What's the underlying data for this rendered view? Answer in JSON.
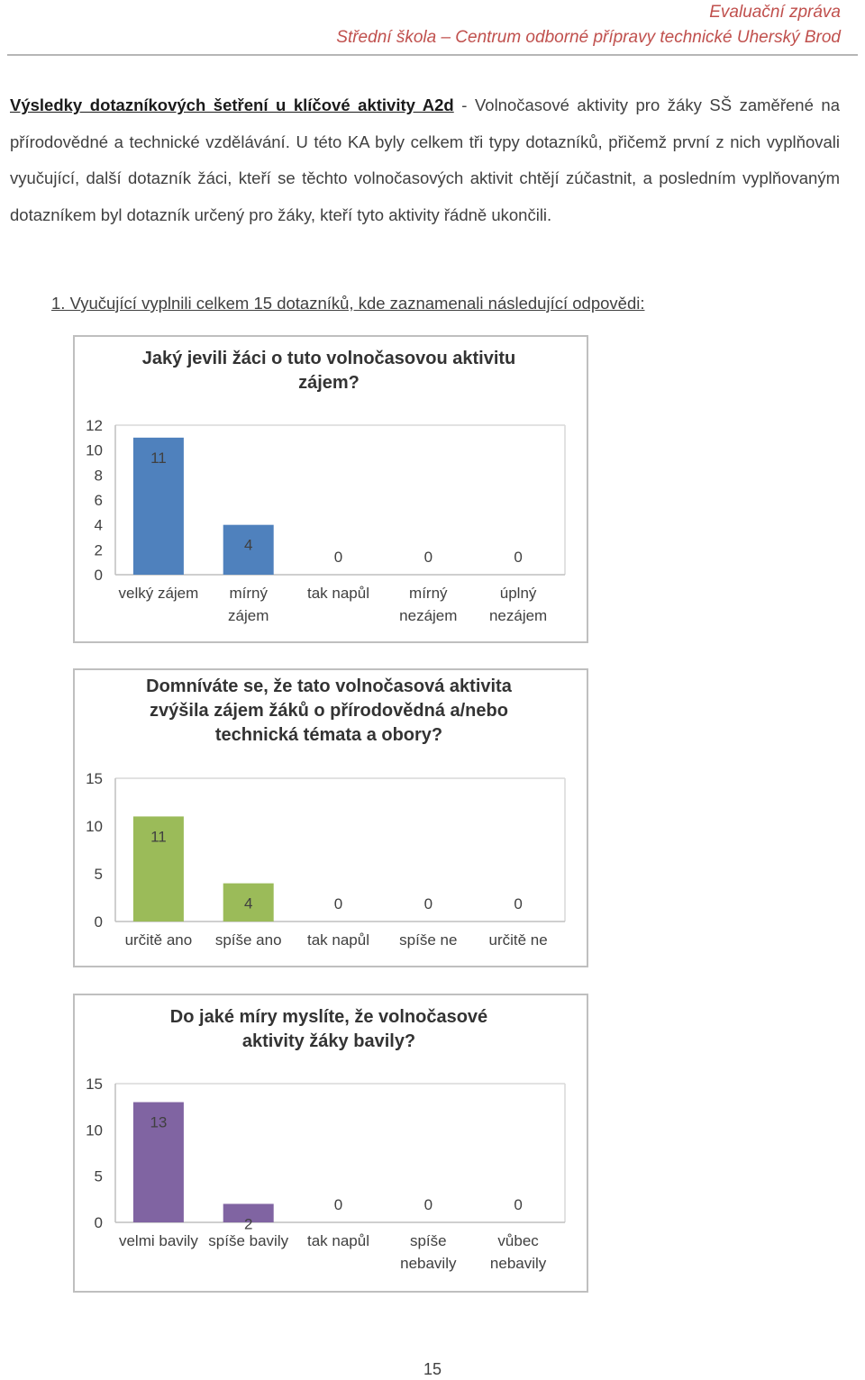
{
  "header": {
    "line1": "Evaluační zpráva",
    "line2": "Střední škola – Centrum odborné přípravy technické Uherský Brod"
  },
  "intro": {
    "lead": "Výsledky dotazníkových šetření u klíčové aktivity A2d",
    "text": " - Volnočasové aktivity pro žáky SŠ zaměřené na přírodovědné a technické vzdělávání. U této KA byly celkem tři typy dotazníků, přičemž první z nich vyplňovali vyučující, další dotazník žáci, kteří se těchto volnočasových aktivit chtějí zúčastnit, a posledním vyplňovaným dotazníkem byl dotazník určený pro žáky, kteří tyto aktivity řádně ukončili."
  },
  "section1": {
    "heading": "1. Vyučující vyplnili celkem 15 dotazníků, kde zaznamenali následující odpovědi:"
  },
  "chart_data": [
    {
      "type": "bar",
      "title": [
        "Jaký jevili žáci o tuto volnočasovou aktivitu",
        "zájem?"
      ],
      "categories": [
        [
          "velký zájem"
        ],
        [
          "mírný",
          "zájem"
        ],
        [
          "tak napůl"
        ],
        [
          "mírný",
          "nezájem"
        ],
        [
          "úplný",
          "nezájem"
        ]
      ],
      "values": [
        11,
        4,
        0,
        0,
        0
      ],
      "ylim": [
        0,
        12
      ],
      "yticks": [
        "0",
        "2",
        "4",
        "6",
        "8",
        "10",
        "12"
      ],
      "color": "#4f81bd"
    },
    {
      "type": "bar",
      "title": [
        "Domníváte se, že tato volnočasová aktivita",
        "zvýšila zájem žáků o přírodovědná a/nebo",
        "technická témata a obory?"
      ],
      "categories": [
        [
          "určitě ano"
        ],
        [
          "spíše ano"
        ],
        [
          "tak napůl"
        ],
        [
          "spíše ne"
        ],
        [
          "určitě ne"
        ]
      ],
      "values": [
        11,
        4,
        0,
        0,
        0
      ],
      "ylim": [
        0,
        15
      ],
      "yticks": [
        "0",
        "5",
        "10",
        "15"
      ],
      "color": "#9bbb59"
    },
    {
      "type": "bar",
      "title": [
        "Do jaké míry myslíte, že volnočasové",
        "aktivity žáky bavily?"
      ],
      "categories": [
        [
          "velmi bavily"
        ],
        [
          "spíše bavily"
        ],
        [
          "tak napůl"
        ],
        [
          "spíše",
          "nebavily"
        ],
        [
          "vůbec",
          "nebavily"
        ]
      ],
      "values": [
        13,
        2,
        0,
        0,
        0
      ],
      "ylim": [
        0,
        15
      ],
      "yticks": [
        "0",
        "5",
        "10",
        "15"
      ],
      "color": "#8064a2"
    }
  ],
  "page_number": "15"
}
